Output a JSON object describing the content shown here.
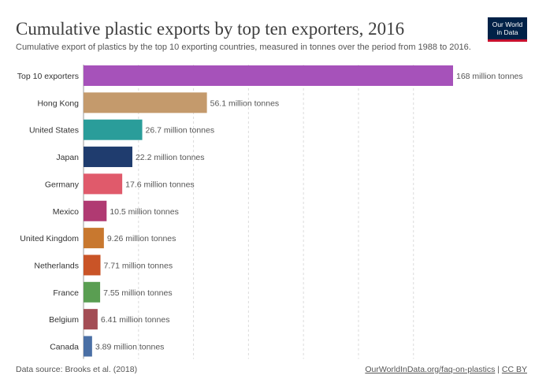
{
  "header": {
    "title": "Cumulative plastic exports by top ten exporters, 2016",
    "subtitle": "Cumulative export of plastics by the top 10 exporting countries, measured in tonnes over the period from 1988 to 2016.",
    "logo_line1": "Our World",
    "logo_line2": "in Data"
  },
  "footer": {
    "source": "Data source: Brooks et al. (2018)",
    "link": "OurWorldInData.org/faq-on-plastics",
    "separator": "|",
    "license": "CC BY"
  },
  "chart_data": {
    "type": "bar",
    "orientation": "horizontal",
    "categories": [
      "Top 10 exporters",
      "Hong Kong",
      "United States",
      "Japan",
      "Germany",
      "Mexico",
      "United Kingdom",
      "Netherlands",
      "France",
      "Belgium",
      "Canada"
    ],
    "values": [
      168,
      56.1,
      26.7,
      22.2,
      17.6,
      10.5,
      9.26,
      7.71,
      7.55,
      6.41,
      3.89
    ],
    "value_labels": [
      "168 million tonnes",
      "56.1 million tonnes",
      "26.7 million tonnes",
      "22.2 million tonnes",
      "17.6 million tonnes",
      "10.5 million tonnes",
      "9.26 million tonnes",
      "7.71 million tonnes",
      "7.55 million tonnes",
      "6.41 million tonnes",
      "3.89 million tonnes"
    ],
    "colors": [
      "#a652ba",
      "#c49a6c",
      "#2a9d9a",
      "#1f3c6e",
      "#e05a6b",
      "#b03a72",
      "#c8782f",
      "#c95427",
      "#5a9e52",
      "#a34d55",
      "#4a6fa5"
    ],
    "unit": "million tonnes",
    "xlim": [
      0,
      168
    ],
    "grid": true
  }
}
